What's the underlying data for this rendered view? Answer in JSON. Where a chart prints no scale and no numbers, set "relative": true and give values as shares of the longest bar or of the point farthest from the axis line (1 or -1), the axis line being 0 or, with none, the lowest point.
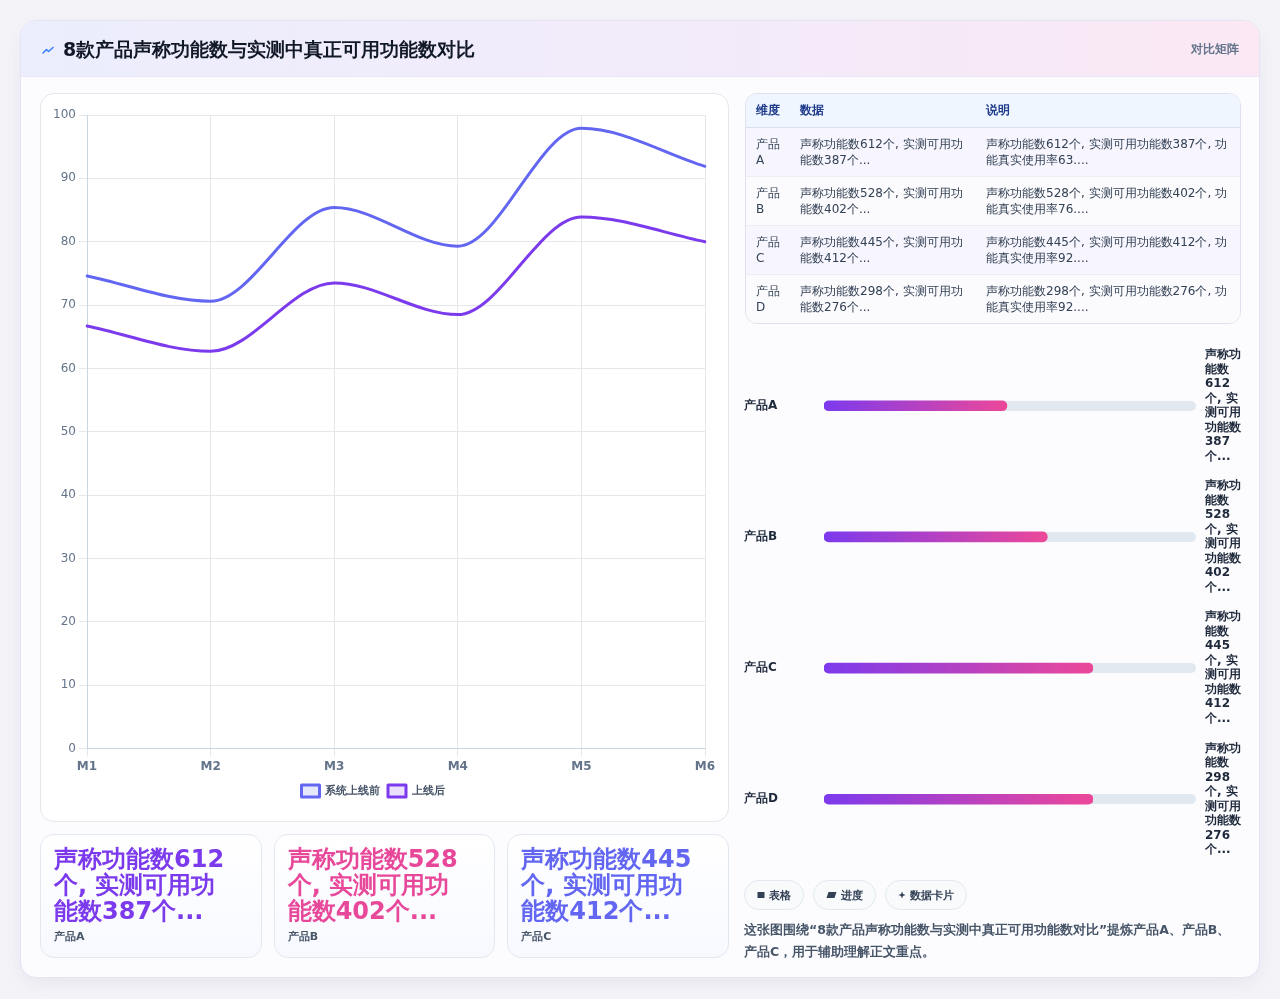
{
  "chart_data": [
    {
      "type": "line",
      "title": "8款产品声称功能数与实测中真正可用功能数对比",
      "categories": [
        "M1",
        "M2",
        "M3",
        "M4",
        "M5",
        "M6"
      ],
      "series": [
        {
          "name": "系统上线前",
          "color": "#6366f1",
          "values": [
            74.6,
            70.6,
            85.4,
            79.3,
            97.9,
            91.9
          ]
        },
        {
          "name": "上线后",
          "color": "#7c3aed",
          "values": [
            66.7,
            62.7,
            73.5,
            68.5,
            83.9,
            80.0
          ]
        }
      ],
      "ylim": [
        0,
        100
      ],
      "yticks": [
        0,
        10,
        20,
        30,
        40,
        50,
        60,
        70,
        80,
        90,
        100
      ],
      "grid": true,
      "legend": "bottom"
    },
    {
      "type": "other",
      "title": "对比矩阵",
      "categories": [
        "维度",
        "数据",
        "说明"
      ],
      "annotations": [
        "产品A",
        "声称功能数612个, 实测可用功能数387个...",
        "声称功能数612个, 实测可用功能数387个, 功能真实使用率63....",
        "产品B",
        "声称功能数528个, 实测可用功能数402个...",
        "声称功能数528个, 实测可用功能数402个, 功能真实使用率76....",
        "产品C",
        "声称功能数445个, 实测可用功能数412个...",
        "声称功能数445个, 实测可用功能数412个, 功能真实使用率92....",
        "产品D",
        "声称功能数298个, 实测可用功能数276个...",
        "声称功能数298个, 实测可用功能数276个, 功能真实使用率92...."
      ]
    },
    {
      "type": "bar",
      "orientation": "horizontal",
      "relative": true,
      "categories": [
        "产品A",
        "产品B",
        "产品C",
        "产品D"
      ],
      "values": [
        0.68,
        0.83,
        1,
        1
      ],
      "color": "#7c3aed",
      "annotations": [
        "声称功能数612个, 实测可用功能数387个...",
        "声称功能数528个, 实测可用功能数402个...",
        "声称功能数445个, 实测可用功能数412个...",
        "声称功能数298个, 实测可用功能数276个..."
      ]
    },
    {
      "type": "other",
      "categories": [
        "产品A",
        "产品B",
        "产品C"
      ],
      "annotations": [
        "声称功能数612个, 实测可用功能数387个...",
        "声称功能数528个, 实测可用功能数402个...",
        "声称功能数445个, 实测可用功能数412个..."
      ]
    },
    {
      "type": "other",
      "categories": [
        "表格",
        "进度",
        "数据卡片"
      ],
      "annotations": [
        "这张图围绕“8款产品声称功能数与实测中真正可用功能数对比”提炼产品A、产品B、产品C，用于辅助理解正文重点。"
      ]
    }
  ]
}
